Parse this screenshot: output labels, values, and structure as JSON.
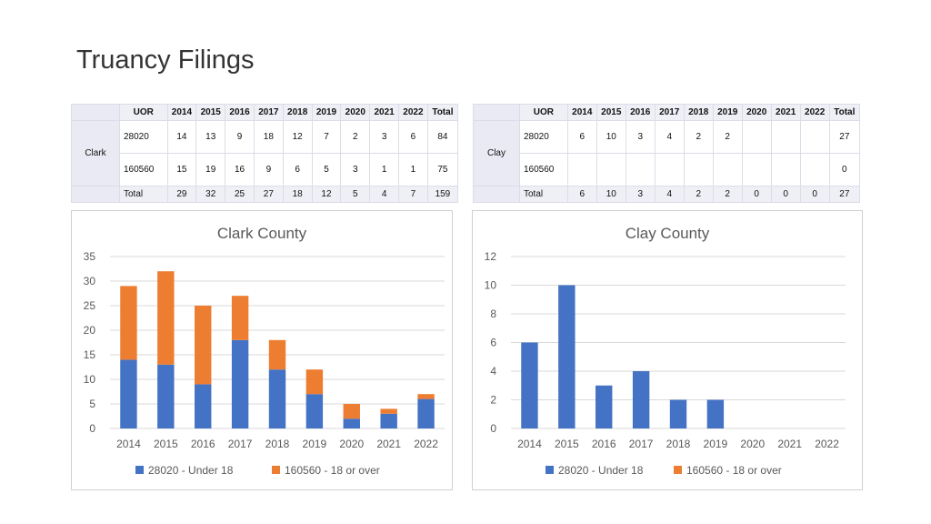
{
  "page": {
    "title": "Truancy Filings"
  },
  "tables": [
    {
      "county": "Clark",
      "headers": [
        "UOR",
        "2014",
        "2015",
        "2016",
        "2017",
        "2018",
        "2019",
        "2020",
        "2021",
        "2022",
        "Total"
      ],
      "rows": [
        [
          "28020",
          "14",
          "13",
          "9",
          "18",
          "12",
          "7",
          "2",
          "3",
          "6",
          "84"
        ],
        [
          "160560",
          "15",
          "19",
          "16",
          "9",
          "6",
          "5",
          "3",
          "1",
          "1",
          "75"
        ]
      ],
      "total_row": [
        "Total",
        "29",
        "32",
        "25",
        "27",
        "18",
        "12",
        "5",
        "4",
        "7",
        "159"
      ]
    },
    {
      "county": "Clay",
      "headers": [
        "UOR",
        "2014",
        "2015",
        "2016",
        "2017",
        "2018",
        "2019",
        "2020",
        "2021",
        "2022",
        "Total"
      ],
      "rows": [
        [
          "28020",
          "6",
          "10",
          "3",
          "4",
          "2",
          "2",
          "",
          "",
          "",
          "27"
        ],
        [
          "160560",
          "",
          "",
          "",
          "",
          "",
          "",
          "",
          "",
          "",
          "0"
        ]
      ],
      "total_row": [
        "Total",
        "6",
        "10",
        "3",
        "4",
        "2",
        "2",
        "0",
        "0",
        "0",
        "27"
      ]
    }
  ],
  "chart_data": [
    {
      "type": "bar",
      "stacked": true,
      "title": "Clark County",
      "categories": [
        "2014",
        "2015",
        "2016",
        "2017",
        "2018",
        "2019",
        "2020",
        "2021",
        "2022"
      ],
      "series": [
        {
          "name": "28020 - Under 18",
          "color": "#4472c4",
          "values": [
            14,
            13,
            9,
            18,
            12,
            7,
            2,
            3,
            6
          ]
        },
        {
          "name": "160560 - 18 or over",
          "color": "#ed7d31",
          "values": [
            15,
            19,
            16,
            9,
            6,
            5,
            3,
            1,
            1
          ]
        }
      ],
      "ylim": [
        0,
        35
      ],
      "yticks": [
        "0",
        "5",
        "10",
        "15",
        "20",
        "25",
        "30",
        "35"
      ],
      "grid": true,
      "legend": "bottom"
    },
    {
      "type": "bar",
      "stacked": true,
      "title": "Clay County",
      "categories": [
        "2014",
        "2015",
        "2016",
        "2017",
        "2018",
        "2019",
        "2020",
        "2021",
        "2022"
      ],
      "series": [
        {
          "name": "28020 - Under 18",
          "color": "#4472c4",
          "values": [
            6,
            10,
            3,
            4,
            2,
            2,
            0,
            0,
            0
          ]
        },
        {
          "name": "160560 - 18 or over",
          "color": "#ed7d31",
          "values": [
            0,
            0,
            0,
            0,
            0,
            0,
            0,
            0,
            0
          ]
        }
      ],
      "ylim": [
        0,
        12
      ],
      "yticks": [
        "0",
        "2",
        "4",
        "6",
        "8",
        "10",
        "12"
      ],
      "grid": true,
      "legend": "bottom"
    }
  ]
}
